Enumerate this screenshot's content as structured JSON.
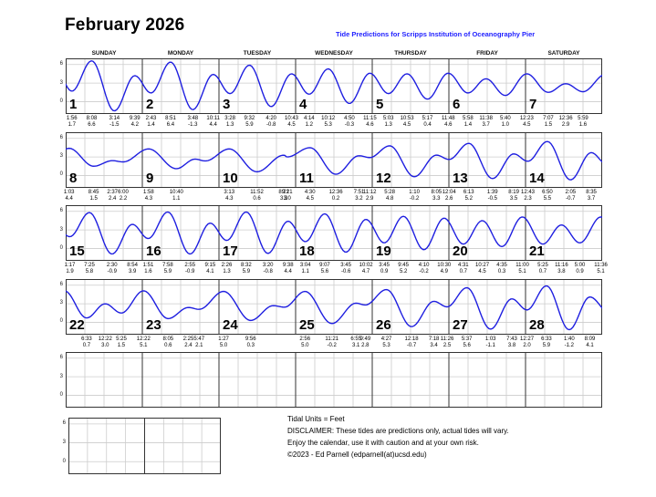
{
  "title": "February 2026",
  "subtitle": "Tide Predictions for Scripps Institution of Oceanography Pier",
  "day_headers": [
    "SUNDAY",
    "MONDAY",
    "TUESDAY",
    "WEDNESDAY",
    "THURSDAY",
    "FRIDAY",
    "SATURDAY"
  ],
  "y_ticks": [
    6,
    3,
    0
  ],
  "colors": {
    "curve": "#1f1fe0",
    "subtitle_blue": "#2222ff",
    "grid_light": "#cccccc",
    "grid_dark": "#333333"
  },
  "footer": {
    "lines": [
      "Tidal Units = Feet",
      "DISCLAIMER: These tides are predictions only, actual tides will vary.",
      "Enjoy the calendar, use it with caution and at your own risk.",
      "©2023 - Ed Parnell (edparnell(at)ucsd.edu)"
    ]
  },
  "chart_data": {
    "type": "line",
    "title": "February 2026 tide calendar",
    "ylabel": "Feet",
    "ylim": [
      -2,
      7
    ],
    "x_unit": "one column per day, tides positioned by time of day (m = minutes after midnight)",
    "edge_points": [
      {
        "day": 0,
        "m": 1205,
        "h": 6.2,
        "synthetic_shape_only": true
      },
      {
        "day": 29,
        "m": 130,
        "h": 1.6,
        "synthetic_shape_only": true
      }
    ],
    "weeks": [
      {
        "days": [
          {
            "day": 1,
            "tides": [
              {
                "t": "1:56",
                "m": 116,
                "h": 1.7
              },
              {
                "t": "8:08",
                "m": 488,
                "h": 6.6
              },
              {
                "t": "3:14",
                "m": 914,
                "h": -1.5
              },
              {
                "t": "9:39",
                "m": 1299,
                "h": 4.2
              }
            ]
          },
          {
            "day": 2,
            "tides": [
              {
                "t": "2:43",
                "m": 163,
                "h": 1.4
              },
              {
                "t": "8:51",
                "m": 531,
                "h": 6.4
              },
              {
                "t": "3:48",
                "m": 948,
                "h": -1.3
              },
              {
                "t": "10:11",
                "m": 1331,
                "h": 4.4
              }
            ]
          },
          {
            "day": 3,
            "tides": [
              {
                "t": "3:28",
                "m": 208,
                "h": 1.3
              },
              {
                "t": "9:32",
                "m": 572,
                "h": 5.9
              },
              {
                "t": "4:20",
                "m": 980,
                "h": -0.8
              },
              {
                "t": "10:43",
                "m": 1363,
                "h": 4.5
              }
            ]
          },
          {
            "day": 4,
            "tides": [
              {
                "t": "4:14",
                "m": 254,
                "h": 1.2
              },
              {
                "t": "10:12",
                "m": 612,
                "h": 5.3
              },
              {
                "t": "4:50",
                "m": 1010,
                "h": -0.3
              },
              {
                "t": "11:15",
                "m": 1395,
                "h": 4.6
              }
            ]
          },
          {
            "day": 5,
            "tides": [
              {
                "t": "5:03",
                "m": 303,
                "h": 1.3
              },
              {
                "t": "10:53",
                "m": 653,
                "h": 4.5
              },
              {
                "t": "5:17",
                "m": 1037,
                "h": 0.4
              },
              {
                "t": "11:48",
                "m": 1428,
                "h": 4.6
              }
            ]
          },
          {
            "day": 6,
            "tides": [
              {
                "t": "5:58",
                "m": 358,
                "h": 1.4
              },
              {
                "t": "11:38",
                "m": 698,
                "h": 3.7
              },
              {
                "t": "5:40",
                "m": 1060,
                "h": 1.0
              }
            ]
          },
          {
            "day": 7,
            "tides": [
              {
                "t": "12:23",
                "m": 23,
                "h": 4.5
              },
              {
                "t": "7:07",
                "m": 427,
                "h": 1.5
              },
              {
                "t": "12:36",
                "m": 756,
                "h": 2.9
              },
              {
                "t": "5:59",
                "m": 1079,
                "h": 1.6
              }
            ]
          }
        ]
      },
      {
        "days": [
          {
            "day": 8,
            "tides": [
              {
                "t": "1:03",
                "m": 63,
                "h": 4.4
              },
              {
                "t": "8:45",
                "m": 525,
                "h": 1.5
              },
              {
                "t": "2:37",
                "m": 877,
                "h": 2.4
              },
              {
                "t": "6:00",
                "m": 1080,
                "h": 2.2
              }
            ]
          },
          {
            "day": 9,
            "tides": [
              {
                "t": "1:58",
                "m": 118,
                "h": 4.3
              },
              {
                "t": "10:40",
                "m": 640,
                "h": 1.1
              }
            ],
            "shape": [
              {
                "m": 990,
                "h": 2.65
              },
              {
                "m": 1185,
                "h": 2.35
              }
            ]
          },
          {
            "day": 10,
            "tides": [
              {
                "t": "3:13",
                "m": 193,
                "h": 4.3
              },
              {
                "t": "11:52",
                "m": 712,
                "h": 0.6
              },
              {
                "t": "8:21",
                "m": 1221,
                "h": 3.3
              },
              {
                "t": "9:21",
                "m": 1281,
                "h": 3.0
              }
            ]
          },
          {
            "day": 11,
            "tides": [
              {
                "t": "4:30",
                "m": 270,
                "h": 4.5
              },
              {
                "t": "12:36",
                "m": 756,
                "h": 0.2
              },
              {
                "t": "7:51",
                "m": 1191,
                "h": 3.2
              },
              {
                "t": "11:12",
                "m": 1392,
                "h": 2.9
              }
            ]
          },
          {
            "day": 12,
            "tides": [
              {
                "t": "5:28",
                "m": 328,
                "h": 4.8
              },
              {
                "t": "1:10",
                "m": 790,
                "h": -0.2
              },
              {
                "t": "8:05",
                "m": 1205,
                "h": 3.3
              }
            ]
          },
          {
            "day": 13,
            "tides": [
              {
                "t": "12:04",
                "m": 4,
                "h": 2.6
              },
              {
                "t": "6:13",
                "m": 373,
                "h": 5.2
              },
              {
                "t": "1:39",
                "m": 819,
                "h": -0.5
              },
              {
                "t": "8:19",
                "m": 1219,
                "h": 3.5
              }
            ]
          },
          {
            "day": 14,
            "tides": [
              {
                "t": "12:43",
                "m": 43,
                "h": 2.3
              },
              {
                "t": "6:50",
                "m": 410,
                "h": 5.5
              },
              {
                "t": "2:05",
                "m": 845,
                "h": -0.7
              },
              {
                "t": "8:35",
                "m": 1235,
                "h": 3.7
              }
            ]
          }
        ]
      },
      {
        "days": [
          {
            "day": 15,
            "tides": [
              {
                "t": "1:17",
                "m": 77,
                "h": 1.9
              },
              {
                "t": "7:25",
                "m": 445,
                "h": 5.8
              },
              {
                "t": "2:30",
                "m": 870,
                "h": -0.9
              },
              {
                "t": "8:54",
                "m": 1254,
                "h": 3.9
              }
            ]
          },
          {
            "day": 16,
            "tides": [
              {
                "t": "1:51",
                "m": 111,
                "h": 1.6
              },
              {
                "t": "7:58",
                "m": 478,
                "h": 5.9
              },
              {
                "t": "2:55",
                "m": 895,
                "h": -0.9
              },
              {
                "t": "9:15",
                "m": 1275,
                "h": 4.1
              }
            ]
          },
          {
            "day": 17,
            "tides": [
              {
                "t": "2:26",
                "m": 146,
                "h": 1.3
              },
              {
                "t": "8:32",
                "m": 512,
                "h": 5.9
              },
              {
                "t": "3:20",
                "m": 920,
                "h": -0.8
              },
              {
                "t": "9:38",
                "m": 1298,
                "h": 4.4
              }
            ]
          },
          {
            "day": 18,
            "tides": [
              {
                "t": "3:04",
                "m": 184,
                "h": 1.1
              },
              {
                "t": "9:07",
                "m": 547,
                "h": 5.6
              },
              {
                "t": "3:45",
                "m": 945,
                "h": -0.6
              },
              {
                "t": "10:02",
                "m": 1322,
                "h": 4.7
              }
            ]
          },
          {
            "day": 19,
            "tides": [
              {
                "t": "3:45",
                "m": 225,
                "h": 0.9
              },
              {
                "t": "9:45",
                "m": 585,
                "h": 5.2
              },
              {
                "t": "4:10",
                "m": 970,
                "h": -0.2
              },
              {
                "t": "10:30",
                "m": 1350,
                "h": 4.9
              }
            ]
          },
          {
            "day": 20,
            "tides": [
              {
                "t": "4:31",
                "m": 271,
                "h": 0.7
              },
              {
                "t": "10:27",
                "m": 627,
                "h": 4.5
              },
              {
                "t": "4:35",
                "m": 995,
                "h": 0.3
              },
              {
                "t": "11:00",
                "m": 1380,
                "h": 5.1
              }
            ]
          },
          {
            "day": 21,
            "tides": [
              {
                "t": "5:25",
                "m": 325,
                "h": 0.7
              },
              {
                "t": "11:16",
                "m": 676,
                "h": 3.8
              },
              {
                "t": "5:00",
                "m": 1020,
                "h": 0.9
              },
              {
                "t": "11:36",
                "m": 1416,
                "h": 5.1
              }
            ]
          }
        ]
      },
      {
        "days": [
          {
            "day": 22,
            "tides": [
              {
                "t": "6:33",
                "m": 393,
                "h": 0.7
              },
              {
                "t": "12:22",
                "m": 742,
                "h": 3.0
              },
              {
                "t": "5:25",
                "m": 1045,
                "h": 1.5
              }
            ]
          },
          {
            "day": 23,
            "tides": [
              {
                "t": "12:22",
                "m": 22,
                "h": 5.1
              },
              {
                "t": "8:05",
                "m": 485,
                "h": 0.6
              },
              {
                "t": "2:25",
                "m": 865,
                "h": 2.4
              },
              {
                "t": "5:47",
                "m": 1067,
                "h": 2.1
              }
            ]
          },
          {
            "day": 24,
            "tides": [
              {
                "t": "1:27",
                "m": 87,
                "h": 5.0
              },
              {
                "t": "9:56",
                "m": 596,
                "h": 0.3
              }
            ],
            "shape": [
              {
                "m": 1020,
                "h": 2.7
              },
              {
                "m": 1230,
                "h": 2.45
              }
            ]
          },
          {
            "day": 25,
            "tides": [
              {
                "t": "2:56",
                "m": 176,
                "h": 5.0
              },
              {
                "t": "11:21",
                "m": 681,
                "h": -0.2
              },
              {
                "t": "6:55",
                "m": 1135,
                "h": 3.1
              },
              {
                "t": "9:49",
                "m": 1309,
                "h": 2.8
              }
            ]
          },
          {
            "day": 26,
            "tides": [
              {
                "t": "4:27",
                "m": 267,
                "h": 5.3
              },
              {
                "t": "12:18",
                "m": 738,
                "h": -0.7
              },
              {
                "t": "7:18",
                "m": 1158,
                "h": 3.4
              },
              {
                "t": "11:26",
                "m": 1406,
                "h": 2.5
              }
            ]
          },
          {
            "day": 27,
            "tides": [
              {
                "t": "5:37",
                "m": 337,
                "h": 5.6
              },
              {
                "t": "1:03",
                "m": 783,
                "h": -1.1
              },
              {
                "t": "7:43",
                "m": 1183,
                "h": 3.8
              }
            ]
          },
          {
            "day": 28,
            "tides": [
              {
                "t": "12:27",
                "m": 27,
                "h": 2.0
              },
              {
                "t": "6:33",
                "m": 393,
                "h": 5.9
              },
              {
                "t": "1:40",
                "m": 820,
                "h": -1.2
              },
              {
                "t": "8:09",
                "m": 1209,
                "h": 4.1
              }
            ]
          }
        ]
      },
      {
        "days": [],
        "empty_row": true
      }
    ]
  }
}
